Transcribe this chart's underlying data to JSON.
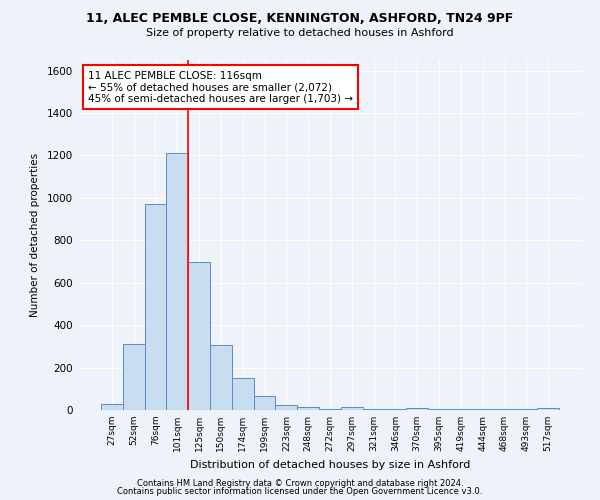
{
  "title1": "11, ALEC PEMBLE CLOSE, KENNINGTON, ASHFORD, TN24 9PF",
  "title2": "Size of property relative to detached houses in Ashford",
  "xlabel": "Distribution of detached houses by size in Ashford",
  "ylabel": "Number of detached properties",
  "bar_color": "#c9ddf0",
  "bar_edge_color": "#5b8bc9",
  "bar_categories": [
    "27sqm",
    "52sqm",
    "76sqm",
    "101sqm",
    "125sqm",
    "150sqm",
    "174sqm",
    "199sqm",
    "223sqm",
    "248sqm",
    "272sqm",
    "297sqm",
    "321sqm",
    "346sqm",
    "370sqm",
    "395sqm",
    "419sqm",
    "444sqm",
    "468sqm",
    "493sqm",
    "517sqm"
  ],
  "bar_values": [
    30,
    310,
    970,
    1210,
    700,
    305,
    150,
    65,
    25,
    15,
    5,
    15,
    5,
    5,
    10,
    5,
    5,
    5,
    5,
    5,
    10
  ],
  "ylim": [
    0,
    1650
  ],
  "yticks": [
    0,
    200,
    400,
    600,
    800,
    1000,
    1200,
    1400,
    1600
  ],
  "property_line_x": 3.5,
  "annotation_line1": "11 ALEC PEMBLE CLOSE: 116sqm",
  "annotation_line2": "← 55% of detached houses are smaller (2,072)",
  "annotation_line3": "45% of semi-detached houses are larger (1,703) →",
  "annotation_box_color": "white",
  "annotation_box_edge_color": "red",
  "red_line_color": "red",
  "footer1": "Contains HM Land Registry data © Crown copyright and database right 2024.",
  "footer2": "Contains public sector information licensed under the Open Government Licence v3.0.",
  "bg_color": "#eef2f9",
  "grid_color": "white"
}
